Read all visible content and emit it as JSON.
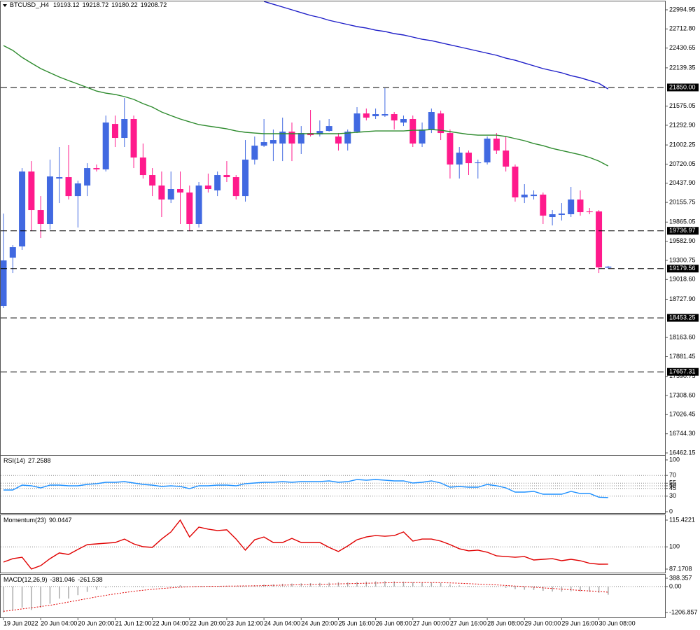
{
  "chart_data": [
    {
      "type": "candlestick",
      "title": "BTCUSD_,H4",
      "categories": [
        "19 Jun 2022",
        null,
        null,
        null,
        "20 Jun 04:00",
        null,
        null,
        null,
        "20 Jun 20:00",
        null,
        null,
        null,
        "21 Jun 12:00",
        null,
        null,
        null,
        "22 Jun 04:00",
        null,
        null,
        null,
        "22 Jun 20:00",
        null,
        null,
        null,
        "23 Jun 12:00",
        null,
        null,
        null,
        "24 Jun 04:00",
        null,
        null,
        null,
        "24 Jun 20:00",
        null,
        null,
        null,
        "25 Jun 16:00",
        null,
        null,
        null,
        "26 Jun 08:00",
        null,
        null,
        null,
        "27 Jun 00:00",
        null,
        null,
        null,
        "27 Jun 16:00",
        null,
        null,
        null,
        "28 Jun 08:00",
        null,
        null,
        null,
        "29 Jun 00:00",
        null,
        null,
        null,
        "29 Jun 16:00",
        null,
        null,
        null,
        "30 Jun 08:00",
        null
      ],
      "open": [
        18629,
        19341,
        19506,
        20611,
        20043,
        19837,
        20507,
        20528,
        20249,
        20404,
        20662,
        20642,
        21312,
        21106,
        21385,
        20817,
        20559,
        20404,
        20198,
        20353,
        20301,
        19837,
        20404,
        20332,
        20559,
        20528,
        20249,
        20786,
        20992,
        21023,
        21023,
        21199,
        21023,
        21178,
        21158,
        21209,
        21127,
        21023,
        21199,
        21467,
        21426,
        21436,
        21457,
        21333,
        21385,
        21023,
        21230,
        21467,
        21178,
        20714,
        20889,
        20734,
        20745,
        21096,
        20920,
        20683,
        20229,
        20249,
        20270,
        19940,
        19971,
        19981,
        20198,
        20022,
        20022,
        19193.12
      ],
      "high": [
        19991,
        19527,
        20662,
        20765,
        20249,
        20786,
        20972,
        21003,
        20476,
        20734,
        20714,
        21436,
        21436,
        21694,
        21436,
        21023,
        20662,
        20611,
        20611,
        20611,
        20404,
        20456,
        20580,
        20611,
        20765,
        20559,
        21075,
        21127,
        21385,
        21230,
        21405,
        21333,
        21281,
        21519,
        21364,
        21385,
        21178,
        21230,
        21560,
        21539,
        21539,
        21839,
        21488,
        21436,
        21436,
        21333,
        21539,
        21508,
        21230,
        20972,
        20920,
        20786,
        21127,
        21178,
        21127,
        20714,
        20425,
        20332,
        20301,
        20043,
        20146,
        20384,
        20332,
        20074,
        20043,
        19218.72
      ],
      "low": [
        18598,
        19114,
        19455,
        19733,
        19630,
        19754,
        20146,
        20198,
        19785,
        20249,
        20611,
        20611,
        20972,
        20972,
        20662,
        20507,
        20249,
        19940,
        20146,
        19837,
        19733,
        19785,
        20301,
        20249,
        20456,
        20198,
        20167,
        20714,
        20972,
        20765,
        20765,
        20765,
        20869,
        21127,
        21127,
        21199,
        20920,
        20920,
        21178,
        21364,
        21385,
        21416,
        21230,
        21281,
        20972,
        20972,
        21178,
        21075,
        20507,
        20507,
        20559,
        20507,
        20714,
        20869,
        20611,
        20167,
        20146,
        20198,
        19837,
        19816,
        19888,
        19940,
        19960,
        19981,
        19114,
        19180.22
      ],
      "close": [
        19300,
        19496,
        20611,
        20043,
        19837,
        20538,
        20528,
        20249,
        20435,
        20662,
        20642,
        21333,
        21106,
        21385,
        20817,
        20559,
        20404,
        20198,
        20353,
        20301,
        19837,
        20404,
        20353,
        20559,
        20528,
        20249,
        20786,
        20992,
        21044,
        21075,
        21199,
        21023,
        21178,
        21147,
        21209,
        21281,
        21023,
        21199,
        21467,
        21405,
        21457,
        21457,
        21364,
        21385,
        21023,
        21230,
        21488,
        21178,
        20714,
        20889,
        20734,
        20745,
        21096,
        20920,
        20683,
        20229,
        20270,
        20270,
        19960,
        19981,
        19991,
        20198,
        20012,
        20012,
        19197,
        19208.72
      ],
      "up_color": "#4169e1",
      "down_color": "#ff1a8c",
      "series": [
        {
          "color": "#2e8b2e",
          "values": [
            22468,
            22396,
            22293,
            22210,
            22128,
            22066,
            22004,
            21952,
            21901,
            21849,
            21797,
            21766,
            21746,
            21715,
            21674,
            21612,
            21560,
            21488,
            21436,
            21385,
            21343,
            21302,
            21281,
            21261,
            21240,
            21209,
            21189,
            21178,
            21168,
            21168,
            21168,
            21168,
            21168,
            21168,
            21168,
            21168,
            21168,
            21178,
            21189,
            21199,
            21209,
            21209,
            21209,
            21209,
            21219,
            21219,
            21230,
            21219,
            21199,
            21178,
            21158,
            21147,
            21147,
            21147,
            21127,
            21096,
            21065,
            21023,
            20992,
            20951,
            20920,
            20889,
            20858,
            20817,
            20765,
            20693
          ]
        },
        {
          "color": "#1e1ec8",
          "values": [
            null,
            null,
            null,
            null,
            null,
            null,
            null,
            null,
            null,
            null,
            null,
            null,
            null,
            null,
            null,
            null,
            null,
            null,
            null,
            null,
            null,
            null,
            null,
            null,
            null,
            null,
            null,
            null,
            23118,
            23077,
            23036,
            22995,
            22953,
            22912,
            22881,
            22840,
            22809,
            22778,
            22747,
            22726,
            22695,
            22675,
            22644,
            22623,
            22592,
            22561,
            22540,
            22509,
            22478,
            22448,
            22417,
            22386,
            22355,
            22324,
            22282,
            22251,
            22210,
            22169,
            22128,
            22097,
            22066,
            22024,
            21993,
            21952,
            21911,
            21828
          ]
        }
      ],
      "ylim": [
        16431.4,
        23118.8
      ],
      "yticks": [
        22994.95,
        {
          "value": 22712.8,
          "label": "22712.80"
        },
        22430.65,
        22139.35,
        21575.05,
        {
          "value": 21292.9,
          "label": "21292.90"
        },
        21002.25,
        20720.05,
        {
          "value": 20437.9,
          "label": "20437.90"
        },
        20155.75,
        19865.05,
        {
          "value": 19582.9,
          "label": "19582.90"
        },
        19300.75,
        {
          "value": 19018.6,
          "label": "19018.60"
        },
        {
          "value": 18727.9,
          "label": "18727.90"
        },
        {
          "value": 18163.6,
          "label": "18163.60"
        },
        17881.45,
        17590.75,
        {
          "value": 17308.6,
          "label": "17308.60"
        },
        17026.45,
        {
          "value": 16744.3,
          "label": "16744.30"
        },
        16462.15
      ],
      "levels": [
        {
          "value": 21850,
          "label": "21850.00"
        },
        19736.97,
        19179.56,
        18453.25,
        17657.31
      ],
      "grid": false
    },
    {
      "type": "line",
      "title": "RSI(14)",
      "series": [
        {
          "color": "#1e90ff",
          "values": [
            41.9,
            41.9,
            51.4,
            50.0,
            45.9,
            51.4,
            51.4,
            50.0,
            50.0,
            52.7,
            54.1,
            56.8,
            56.8,
            58.1,
            55.4,
            52.7,
            51.4,
            48.6,
            50.0,
            48.6,
            44.6,
            50.0,
            50.0,
            51.4,
            51.4,
            50.0,
            54.1,
            55.4,
            56.8,
            56.8,
            58.1,
            56.8,
            58.1,
            58.1,
            58.1,
            59.5,
            56.8,
            58.1,
            62.2,
            60.8,
            62.2,
            60.8,
            59.5,
            59.5,
            55.4,
            56.8,
            59.5,
            55.4,
            47.3,
            48.6,
            47.3,
            47.3,
            52.7,
            50.0,
            45.9,
            37.8,
            37.8,
            39.2,
            33.8,
            33.8,
            33.8,
            39.2,
            35.1,
            35.1,
            28.0,
            27.2588
          ]
        }
      ],
      "ylim": [
        -2.7,
        108.1
      ],
      "yticks": [
        0,
        30,
        45,
        50,
        55,
        70,
        100
      ],
      "grid": true
    },
    {
      "type": "line",
      "title": "Momentum(23)",
      "series": [
        {
          "color": "#e00000",
          "values": [
            91.2,
            93.2,
            94.0,
            87.2,
            89.2,
            93.2,
            96.5,
            95.6,
            98.5,
            101.3,
            101.7,
            102.1,
            102.5,
            104.5,
            101.7,
            100.1,
            99.7,
            104.5,
            108.6,
            115.4221,
            105.7,
            111.4,
            110.2,
            109.4,
            109.8,
            104.5,
            98.1,
            104.1,
            105.7,
            102.5,
            102.5,
            104.9,
            102.5,
            102.5,
            102.5,
            99.7,
            97.3,
            100.5,
            104.1,
            105.7,
            106.5,
            106.1,
            106.5,
            108.6,
            103.3,
            104.5,
            104.5,
            103.3,
            101.3,
            98.9,
            97.7,
            98.1,
            96.9,
            94.8,
            94.4,
            94.0,
            94.4,
            92.4,
            92.8,
            93.2,
            92.0,
            92.8,
            92.0,
            90.5,
            90.0,
            90.0447
          ]
        }
      ],
      "ylim": [
        85.15,
        118.25
      ],
      "yticks": [
        87.1708,
        100,
        115.4221
      ],
      "grid": true
    },
    {
      "type": "macd",
      "title": "MACD(12,26,9)",
      "values": [
        -1206.857,
        -1100,
        -980,
        -1090,
        -980,
        -800,
        -560,
        -560,
        -400,
        -250,
        -150,
        -60,
        0,
        30,
        0,
        -40,
        -40,
        -20,
        30,
        60,
        0,
        10,
        20,
        10,
        20,
        0,
        10,
        60,
        90,
        100,
        130,
        140,
        150,
        160,
        170,
        180,
        200,
        190,
        210,
        230,
        240,
        250,
        240,
        230,
        200,
        180,
        190,
        170,
        100,
        50,
        20,
        -10,
        10,
        -20,
        -60,
        -120,
        -150,
        -160,
        -200,
        -230,
        -240,
        -220,
        -230,
        -250,
        -290,
        -381.046
      ],
      "color": "#a9a9a9",
      "series": [
        {
          "color": "#e00000",
          "style": "dotted",
          "values": [
            -1150,
            -1100,
            -1040,
            -990,
            -930,
            -870,
            -800,
            -720,
            -640,
            -560,
            -480,
            -410,
            -340,
            -280,
            -220,
            -170,
            -130,
            -90,
            -60,
            -30,
            -10,
            0,
            10,
            15,
            20,
            25,
            30,
            35,
            45,
            55,
            65,
            75,
            85,
            95,
            105,
            115,
            125,
            135,
            145,
            155,
            165,
            175,
            180,
            185,
            185,
            185,
            185,
            180,
            170,
            155,
            135,
            115,
            95,
            75,
            50,
            25,
            0,
            -30,
            -60,
            -90,
            -120,
            -150,
            -180,
            -205,
            -230,
            -261.538
          ]
        }
      ],
      "ylim": [
        -1434.7,
        551.1
      ],
      "yticks": [
        -1206.857,
        {
          "value": 0,
          "label": "0.00"
        },
        388.357
      ],
      "grid": true
    }
  ]
}
